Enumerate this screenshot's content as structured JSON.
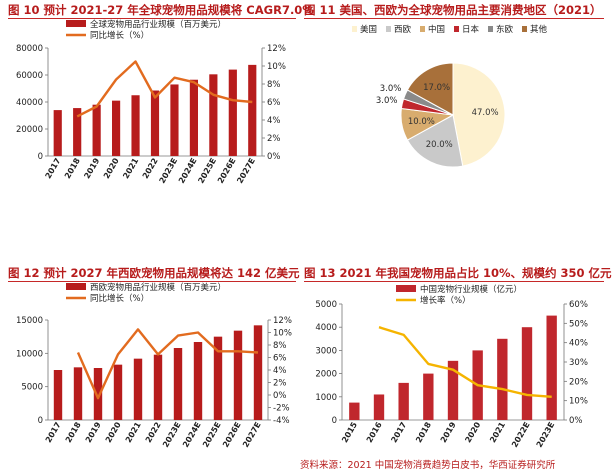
{
  "figures": {
    "fig10": {
      "title": "图 10  预计 2021-27 年全球宠物用品规模将 CAGR7.0%"
    },
    "fig11": {
      "title": "图 11  美国、西欧为全球宠物用品主要消费地区（2021）"
    },
    "fig12": {
      "title": "图 12  预计 2027 年西欧宠物用品规模将达 142 亿美元"
    },
    "fig13": {
      "title": "图 13  2021 年我国宠物用品占比 10%、规模约 350 亿元"
    }
  },
  "footer": {
    "source": "资料来源：2021 中国宠物消费趋势白皮书，华西证券研究所"
  },
  "chart_data": [
    {
      "id": "fig10",
      "type": "bar",
      "categories": [
        "2017",
        "2018",
        "2019",
        "2020",
        "2021",
        "2022",
        "2023E",
        "2024E",
        "2025E",
        "2026E",
        "2027E"
      ],
      "series": [
        {
          "name": "全球宠物用品行业规模（百万美元）",
          "kind": "bar",
          "axis": "left",
          "color": "#b71c1c",
          "values": [
            34000,
            35500,
            38000,
            41000,
            45000,
            48500,
            53000,
            56500,
            60500,
            64000,
            67500
          ]
        },
        {
          "name": "同比增长（%）",
          "kind": "line",
          "axis": "right",
          "color": "#e26b1f",
          "values": [
            null,
            4.4,
            5.5,
            8.5,
            10.5,
            6.5,
            8.7,
            8.2,
            6.8,
            6.2,
            6.0
          ]
        }
      ],
      "ylim": [
        0,
        80000
      ],
      "yticks": [
        0,
        20000,
        40000,
        60000,
        80000
      ],
      "y2lim": [
        0,
        12
      ],
      "y2ticks": [
        "0%",
        "2%",
        "4%",
        "6%",
        "8%",
        "10%",
        "12%"
      ],
      "legend": "top-left"
    },
    {
      "id": "fig11",
      "type": "pie",
      "legend": [
        "美国",
        "西欧",
        "中国",
        "日本",
        "东欧",
        "其他"
      ],
      "values": [
        47.0,
        20.0,
        10.0,
        3.0,
        3.0,
        17.0
      ],
      "labels": [
        "47.0%",
        "20.0%",
        "10.0%",
        "3.0%",
        "3.0%",
        "17.0%"
      ],
      "colors": [
        "#fdf1cf",
        "#c9c9c9",
        "#d8ac6e",
        "#c0272d",
        "#8a8a8a",
        "#a8703a"
      ],
      "legend_position": "top"
    },
    {
      "id": "fig12",
      "type": "bar",
      "categories": [
        "2017",
        "2018",
        "2019",
        "2020",
        "2021",
        "2022",
        "2023E",
        "2024E",
        "2025E",
        "2026E",
        "2027E"
      ],
      "series": [
        {
          "name": "西欧宠物用品行业规模（百万美元）",
          "kind": "bar",
          "axis": "left",
          "color": "#b71c1c",
          "values": [
            7500,
            7900,
            7800,
            8300,
            9200,
            9800,
            10800,
            11700,
            12500,
            13400,
            14200
          ]
        },
        {
          "name": "同比增长（%）",
          "kind": "line",
          "axis": "right",
          "color": "#e26b1f",
          "values": [
            null,
            6.8,
            -0.5,
            6.5,
            10.5,
            6.5,
            9.5,
            10.0,
            7.0,
            7.0,
            6.8
          ]
        }
      ],
      "ylim": [
        0,
        15000
      ],
      "yticks": [
        0,
        5000,
        10000,
        15000
      ],
      "y2lim": [
        -4,
        12
      ],
      "y2ticks": [
        "-4%",
        "-2%",
        "0%",
        "2%",
        "4%",
        "6%",
        "8%",
        "10%",
        "12%"
      ],
      "legend": "top-left"
    },
    {
      "id": "fig13",
      "type": "bar",
      "categories": [
        "2015",
        "2016",
        "2017",
        "2018",
        "2019",
        "2020",
        "2021",
        "2022E",
        "2023E"
      ],
      "series": [
        {
          "name": "中国宠物行业规模（亿元）",
          "kind": "bar",
          "axis": "left",
          "color": "#c0272d",
          "values": [
            750,
            1100,
            1600,
            2000,
            2550,
            3000,
            3500,
            4000,
            4500
          ]
        },
        {
          "name": "增长率（%）",
          "kind": "line",
          "axis": "right",
          "color": "#f5b400",
          "values": [
            null,
            48,
            44,
            29,
            26,
            18,
            16,
            13,
            12
          ]
        }
      ],
      "ylim": [
        0,
        5000
      ],
      "yticks": [
        0,
        1000,
        2000,
        3000,
        4000,
        5000
      ],
      "y2lim": [
        0,
        60
      ],
      "y2ticks": [
        "0%",
        "10%",
        "20%",
        "30%",
        "40%",
        "50%",
        "60%"
      ],
      "legend": "top-left"
    }
  ]
}
